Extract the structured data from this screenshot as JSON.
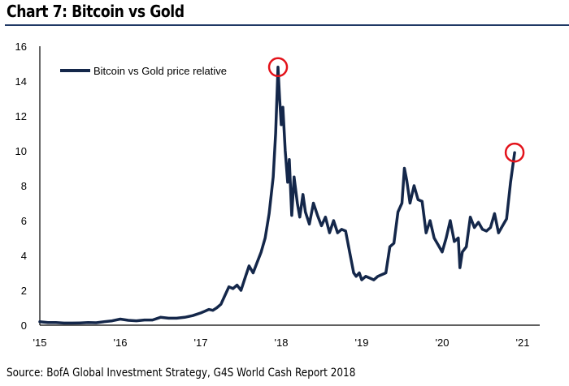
{
  "header": {
    "title": "Chart 7: Bitcoin vs Gold"
  },
  "footer": {
    "source": "Source: BofA Global Investment Strategy, G4S World Cash Report 2018"
  },
  "colors": {
    "line": "#14274a",
    "highlight": "#e3131b",
    "rule": "#1f3864"
  },
  "chart_data": {
    "type": "line",
    "title": "Chart 7: Bitcoin vs Gold",
    "xlabel": "",
    "ylabel": "",
    "xlim": [
      2015,
      2021.2
    ],
    "ylim": [
      0,
      16
    ],
    "grid": false,
    "legend": {
      "position": "top-left",
      "entries": [
        "Bitcoin vs Gold price relative"
      ]
    },
    "x_ticks": [
      2015,
      2016,
      2017,
      2018,
      2019,
      2020,
      2021
    ],
    "x_tick_labels": [
      "'15",
      "'16",
      "'17",
      "'18",
      "'19",
      "'20",
      "'21"
    ],
    "y_ticks": [
      0,
      2,
      4,
      6,
      8,
      10,
      12,
      14,
      16
    ],
    "y_tick_labels": [
      "0",
      "2",
      "4",
      "6",
      "8",
      "10",
      "12",
      "14",
      "16"
    ],
    "annotations": [
      {
        "type": "circle",
        "x": 2017.96,
        "y": 14.8,
        "label": "2017 peak"
      },
      {
        "type": "circle",
        "x": 2020.9,
        "y": 9.9,
        "label": "latest"
      }
    ],
    "series": [
      {
        "name": "Bitcoin vs Gold price relative",
        "x": [
          2015.0,
          2015.1,
          2015.2,
          2015.3,
          2015.4,
          2015.5,
          2015.6,
          2015.7,
          2015.8,
          2015.9,
          2016.0,
          2016.1,
          2016.2,
          2016.3,
          2016.4,
          2016.5,
          2016.6,
          2016.7,
          2016.8,
          2016.9,
          2017.0,
          2017.05,
          2017.1,
          2017.15,
          2017.2,
          2017.25,
          2017.3,
          2017.35,
          2017.4,
          2017.45,
          2017.5,
          2017.55,
          2017.6,
          2017.65,
          2017.7,
          2017.75,
          2017.8,
          2017.85,
          2017.9,
          2017.93,
          2017.96,
          2017.98,
          2018.0,
          2018.02,
          2018.05,
          2018.08,
          2018.1,
          2018.13,
          2018.16,
          2018.2,
          2018.23,
          2018.27,
          2018.3,
          2018.35,
          2018.4,
          2018.45,
          2018.5,
          2018.55,
          2018.6,
          2018.65,
          2018.7,
          2018.75,
          2018.8,
          2018.85,
          2018.9,
          2018.93,
          2018.97,
          2019.0,
          2019.05,
          2019.1,
          2019.15,
          2019.2,
          2019.25,
          2019.3,
          2019.35,
          2019.4,
          2019.45,
          2019.5,
          2019.53,
          2019.56,
          2019.6,
          2019.65,
          2019.7,
          2019.75,
          2019.8,
          2019.85,
          2019.9,
          2019.95,
          2020.0,
          2020.05,
          2020.1,
          2020.15,
          2020.2,
          2020.22,
          2020.25,
          2020.3,
          2020.35,
          2020.4,
          2020.45,
          2020.5,
          2020.55,
          2020.6,
          2020.65,
          2020.7,
          2020.75,
          2020.8,
          2020.85,
          2020.9
        ],
        "y": [
          0.2,
          0.15,
          0.15,
          0.12,
          0.12,
          0.13,
          0.15,
          0.14,
          0.2,
          0.25,
          0.35,
          0.28,
          0.25,
          0.3,
          0.3,
          0.45,
          0.4,
          0.4,
          0.45,
          0.55,
          0.7,
          0.8,
          0.9,
          0.85,
          1.0,
          1.2,
          1.7,
          2.2,
          2.1,
          2.3,
          2.0,
          2.7,
          3.4,
          3.0,
          3.6,
          4.2,
          5.0,
          6.4,
          8.5,
          11.0,
          14.8,
          13.0,
          11.5,
          12.5,
          10.0,
          8.2,
          9.5,
          6.3,
          8.5,
          7.0,
          6.2,
          7.5,
          6.5,
          5.8,
          7.0,
          6.3,
          5.7,
          6.2,
          5.3,
          6.0,
          5.3,
          5.5,
          5.4,
          4.2,
          3.0,
          2.8,
          3.0,
          2.6,
          2.8,
          2.7,
          2.6,
          2.8,
          2.9,
          3.0,
          4.5,
          4.7,
          6.5,
          7.0,
          9.0,
          8.3,
          7.0,
          8.0,
          7.2,
          7.1,
          5.3,
          6.0,
          5.0,
          4.6,
          4.2,
          5.0,
          6.0,
          4.8,
          5.0,
          3.3,
          4.2,
          4.5,
          6.2,
          5.6,
          5.9,
          5.5,
          5.4,
          5.6,
          6.4,
          5.3,
          5.7,
          6.1,
          8.2,
          9.9
        ]
      }
    ]
  }
}
